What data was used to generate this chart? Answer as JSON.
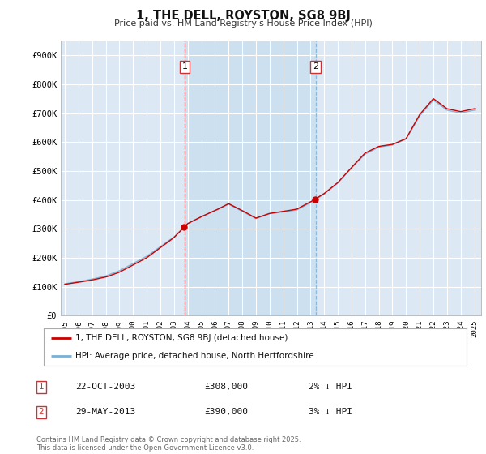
{
  "title": "1, THE DELL, ROYSTON, SG8 9BJ",
  "subtitle": "Price paid vs. HM Land Registry's House Price Index (HPI)",
  "ylim": [
    0,
    950000
  ],
  "yticks": [
    0,
    100000,
    200000,
    300000,
    400000,
    500000,
    600000,
    700000,
    800000,
    900000
  ],
  "ytick_labels": [
    "£0",
    "£100K",
    "£200K",
    "£300K",
    "£400K",
    "£500K",
    "£600K",
    "£700K",
    "£800K",
    "£900K"
  ],
  "fig_bg_color": "#ffffff",
  "plot_bg_color": "#dce9f5",
  "highlight_color": "#cce0f0",
  "grid_color": "#ffffff",
  "line1_color": "#cc0000",
  "line2_color": "#7ab0d4",
  "sale1_x": 2003.79,
  "sale1_price": 308000,
  "sale2_x": 2013.37,
  "sale2_price": 390000,
  "legend1": "1, THE DELL, ROYSTON, SG8 9BJ (detached house)",
  "legend2": "HPI: Average price, detached house, North Hertfordshire",
  "annotation1_date": "22-OCT-2003",
  "annotation1_price": "£308,000",
  "annotation1_hpi": "2% ↓ HPI",
  "annotation2_date": "29-MAY-2013",
  "annotation2_price": "£390,000",
  "annotation2_hpi": "3% ↓ HPI",
  "footer": "Contains HM Land Registry data © Crown copyright and database right 2025.\nThis data is licensed under the Open Government Licence v3.0.",
  "xlim_left": 1994.7,
  "xlim_right": 2025.5
}
